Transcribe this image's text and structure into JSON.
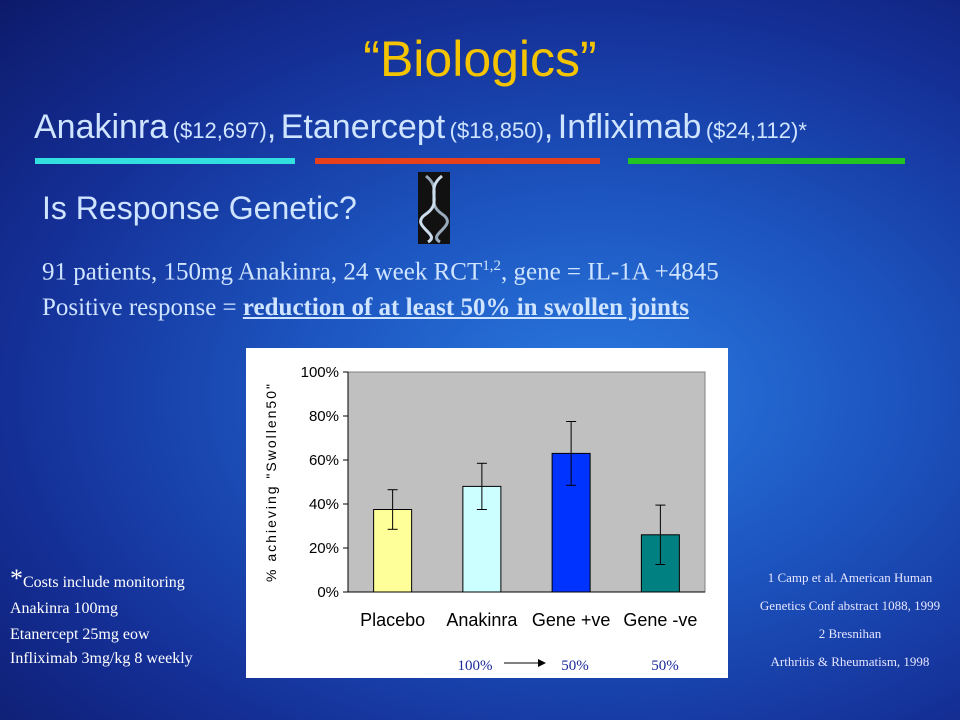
{
  "title": "“Biologics”",
  "drugs": [
    {
      "name": "Anakinra",
      "cost": "($12,697)"
    },
    {
      "name": "Etanercept",
      "cost": "($18,850)"
    },
    {
      "name": "Infliximab",
      "cost": "($24,112)*"
    }
  ],
  "separator": ",",
  "subtitle": "Is Response Genetic?",
  "study": {
    "text": "91 patients, 150mg Anakinra, 24 week RCT",
    "refs": "1,2",
    "rest": ", gene = IL-1A +4845"
  },
  "definition": {
    "label": "Positive response = ",
    "emphasis": "reduction of at least 50% in swollen joints"
  },
  "costs_note": {
    "mark": "*",
    "title": "Costs include monitoring",
    "lines": [
      "Anakinra 100mg",
      "Etanercept 25mg eow",
      "Infliximab 3mg/kg 8 weekly"
    ]
  },
  "references": [
    "1  Camp et al. American Human",
    "Genetics Conf abstract 1088, 1999",
    "2   Bresnihan",
    "Arthritis & Rheumatism, 1998"
  ],
  "chart_data": {
    "type": "bar",
    "y_label": "% achieving \"Swollen50\"",
    "categories": [
      "Placebo",
      "Anakinra",
      "Gene +ve",
      "Gene -ve"
    ],
    "values": [
      37.5,
      48,
      63,
      26
    ],
    "errors": [
      9,
      10.5,
      14.5,
      13.5
    ],
    "colors": [
      "#ffff99",
      "#ccffff",
      "#0033ff",
      "#008080"
    ],
    "ylim": [
      0,
      100
    ],
    "yticks": [
      {
        "value": 0,
        "label": "0%"
      },
      {
        "value": 20,
        "label": "20%"
      },
      {
        "value": 40,
        "label": "40%"
      },
      {
        "value": 60,
        "label": "60%"
      },
      {
        "value": 80,
        "label": "80%"
      },
      {
        "value": 100,
        "label": "100%"
      }
    ],
    "annotations": [
      "100%",
      "50%",
      "50%"
    ]
  }
}
